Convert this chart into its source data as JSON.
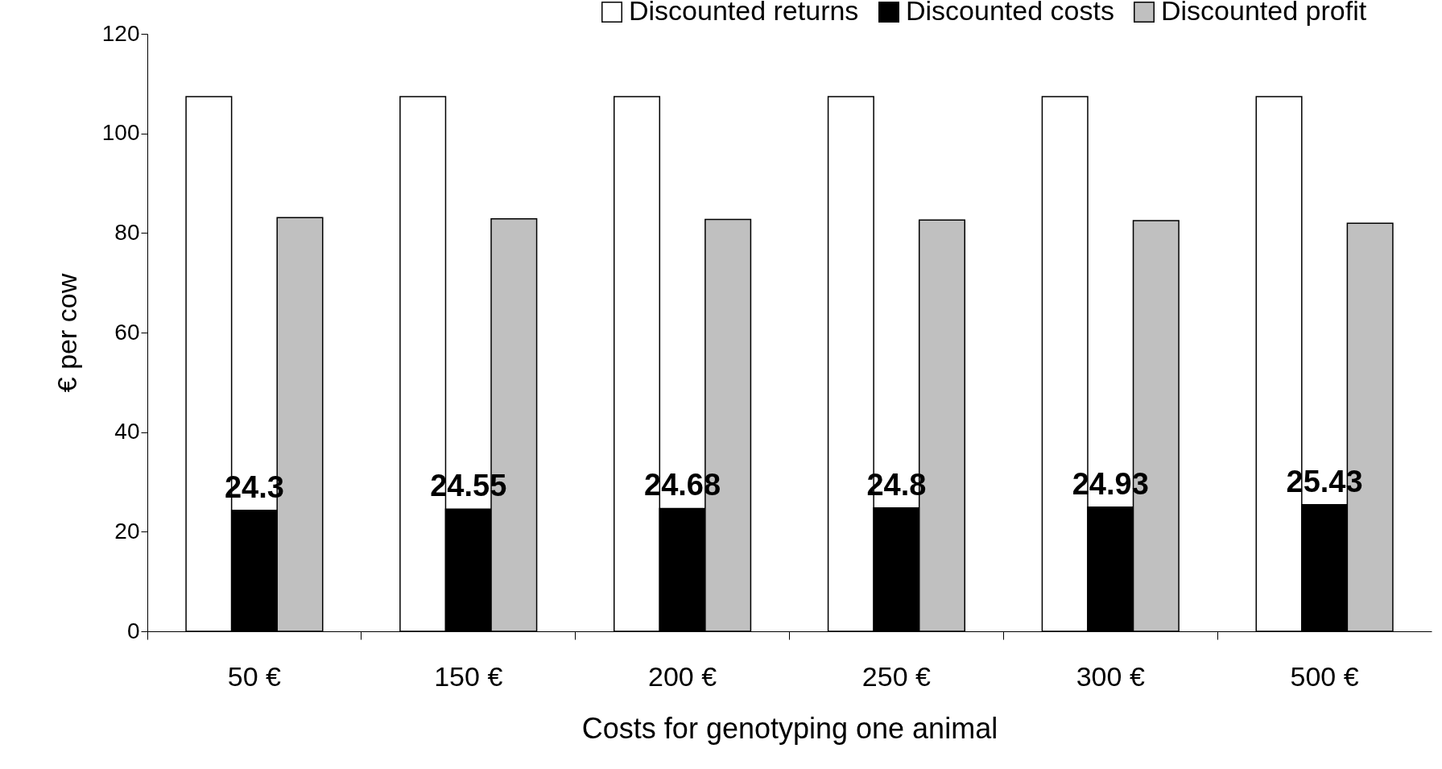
{
  "chart_data": {
    "type": "bar",
    "xlabel": "Costs for genotyping one animal",
    "ylabel": "€ per cow",
    "categories": [
      "50 €",
      "150 €",
      "200 €",
      "250 €",
      "300 €",
      "500 €"
    ],
    "series": [
      {
        "name": "Discounted returns",
        "color": "#ffffff",
        "values": [
          107.4,
          107.4,
          107.4,
          107.4,
          107.4,
          107.4
        ]
      },
      {
        "name": "Discounted costs",
        "color": "#000000",
        "values": [
          24.3,
          24.55,
          24.68,
          24.8,
          24.93,
          25.43
        ],
        "value_labels": [
          "24.3",
          "24.55",
          "24.68",
          "24.8",
          "24.93",
          "25.43"
        ]
      },
      {
        "name": "Discounted profit",
        "color": "#c0c0c0",
        "values": [
          83.1,
          82.85,
          82.72,
          82.6,
          82.47,
          81.97
        ]
      }
    ],
    "ylim": [
      0,
      120
    ],
    "yticks": [
      0,
      20,
      40,
      60,
      80,
      100,
      120
    ],
    "grid": false,
    "legend": "top right"
  }
}
